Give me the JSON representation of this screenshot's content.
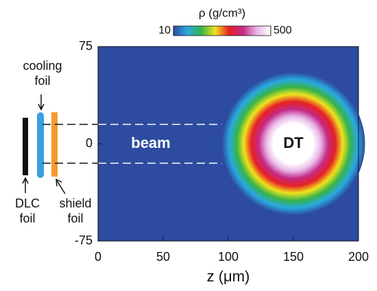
{
  "chart_data": {
    "type": "heatmap",
    "xlabel": "z (μm)",
    "xlim": [
      0,
      200
    ],
    "xticks": [
      0,
      50,
      100,
      150,
      200
    ],
    "ylim": [
      -75,
      75
    ],
    "yticks": [
      -75,
      0,
      75
    ],
    "background_color": "#2d4b9f",
    "shell": {
      "label": "DT",
      "center_z": 150,
      "center_y": 0,
      "outer_radius": 55
    },
    "beam": {
      "label": "beam",
      "y_edges": [
        -15,
        15
      ]
    },
    "colorbar": {
      "title": "ρ (g/cm³)",
      "clim": [
        10,
        500
      ],
      "ticks": [
        10,
        500
      ],
      "colors": [
        "#2d4b9f",
        "#2aa9e0",
        "#36b34a",
        "#f0e31c",
        "#e62026",
        "#c42a86",
        "#e8b6e8",
        "#ffffff"
      ]
    },
    "foils": {
      "cooling": "cooling foil",
      "dlc": "DLC foil",
      "shield": "shield foil"
    }
  }
}
